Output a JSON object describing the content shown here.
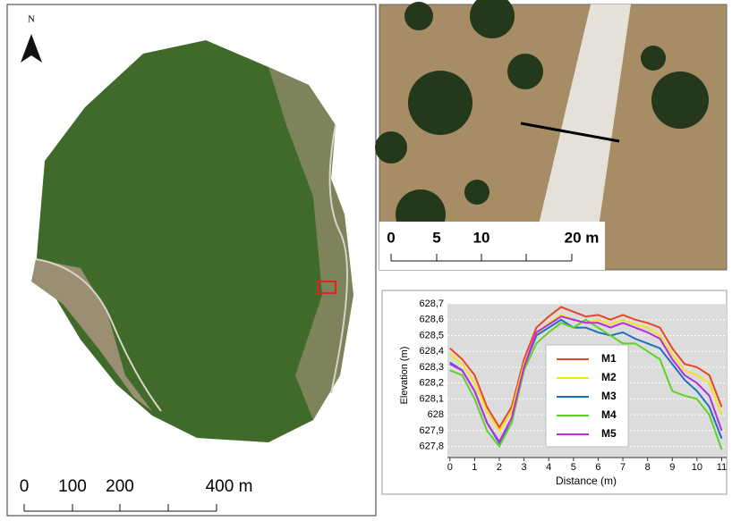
{
  "map": {
    "north": "N",
    "scale_labels": [
      "0",
      "100",
      "200",
      "400 m"
    ]
  },
  "photo": {
    "scale_labels": [
      "0",
      "5",
      "10",
      "20 m"
    ]
  },
  "chart_data": {
    "type": "line",
    "x_label": "Distance (m)",
    "y_label": "Elevation (m)",
    "x": [
      0,
      0.5,
      1,
      1.5,
      2,
      2.5,
      3,
      3.5,
      4,
      4.5,
      5,
      5.5,
      6,
      6.5,
      7,
      7.5,
      8,
      8.5,
      9,
      9.5,
      10,
      10.5,
      11
    ],
    "series": [
      {
        "name": "M1",
        "color": "#e8452a",
        "values": [
          628.42,
          628.35,
          628.25,
          628.05,
          627.92,
          628.05,
          628.35,
          628.55,
          628.62,
          628.68,
          628.65,
          628.62,
          628.63,
          628.6,
          628.63,
          628.6,
          628.58,
          628.55,
          628.42,
          628.32,
          628.3,
          628.25,
          628.05
        ]
      },
      {
        "name": "M2",
        "color": "#f2e21e",
        "values": [
          628.38,
          628.32,
          628.2,
          628.02,
          627.9,
          628.02,
          628.32,
          628.5,
          628.58,
          628.63,
          628.6,
          628.58,
          628.6,
          628.57,
          628.6,
          628.57,
          628.55,
          628.5,
          628.38,
          628.28,
          628.25,
          628.2,
          628.0
        ]
      },
      {
        "name": "M3",
        "color": "#1f6fc6",
        "values": [
          628.33,
          628.28,
          628.15,
          627.95,
          627.82,
          627.95,
          628.3,
          628.5,
          628.55,
          628.6,
          628.55,
          628.55,
          628.52,
          628.5,
          628.52,
          628.48,
          628.45,
          628.42,
          628.32,
          628.22,
          628.15,
          628.05,
          627.85
        ]
      },
      {
        "name": "M4",
        "color": "#5fd12a",
        "values": [
          628.28,
          628.25,
          628.1,
          627.9,
          627.8,
          627.95,
          628.28,
          628.45,
          628.52,
          628.58,
          628.55,
          628.6,
          628.55,
          628.5,
          628.45,
          628.45,
          628.4,
          628.35,
          628.15,
          628.12,
          628.1,
          628.0,
          627.78
        ]
      },
      {
        "name": "M5",
        "color": "#b92ce0",
        "values": [
          628.32,
          628.28,
          628.15,
          627.95,
          627.83,
          627.98,
          628.3,
          628.52,
          628.57,
          628.62,
          628.6,
          628.58,
          628.58,
          628.55,
          628.58,
          628.55,
          628.52,
          628.48,
          628.35,
          628.25,
          628.2,
          628.12,
          627.9
        ]
      }
    ],
    "xlim": [
      -0.1,
      11.2
    ],
    "xticks": [
      0,
      1,
      2,
      3,
      4,
      5,
      6,
      7,
      8,
      9,
      10,
      11
    ],
    "ylim": [
      627.73,
      628.7
    ],
    "yticks": [
      {
        "value": 627.8,
        "label": "627,8"
      },
      {
        "value": 627.9,
        "label": "627,9"
      },
      {
        "value": 628.0,
        "label": "628"
      },
      {
        "value": 628.1,
        "label": "628,1"
      },
      {
        "value": 628.2,
        "label": "628,2"
      },
      {
        "value": 628.3,
        "label": "628,3"
      },
      {
        "value": 628.4,
        "label": "628,4"
      },
      {
        "value": 628.5,
        "label": "628,5"
      },
      {
        "value": 628.6,
        "label": "628,6"
      },
      {
        "value": 628.7,
        "label": "628,7"
      }
    ],
    "grid": true
  }
}
